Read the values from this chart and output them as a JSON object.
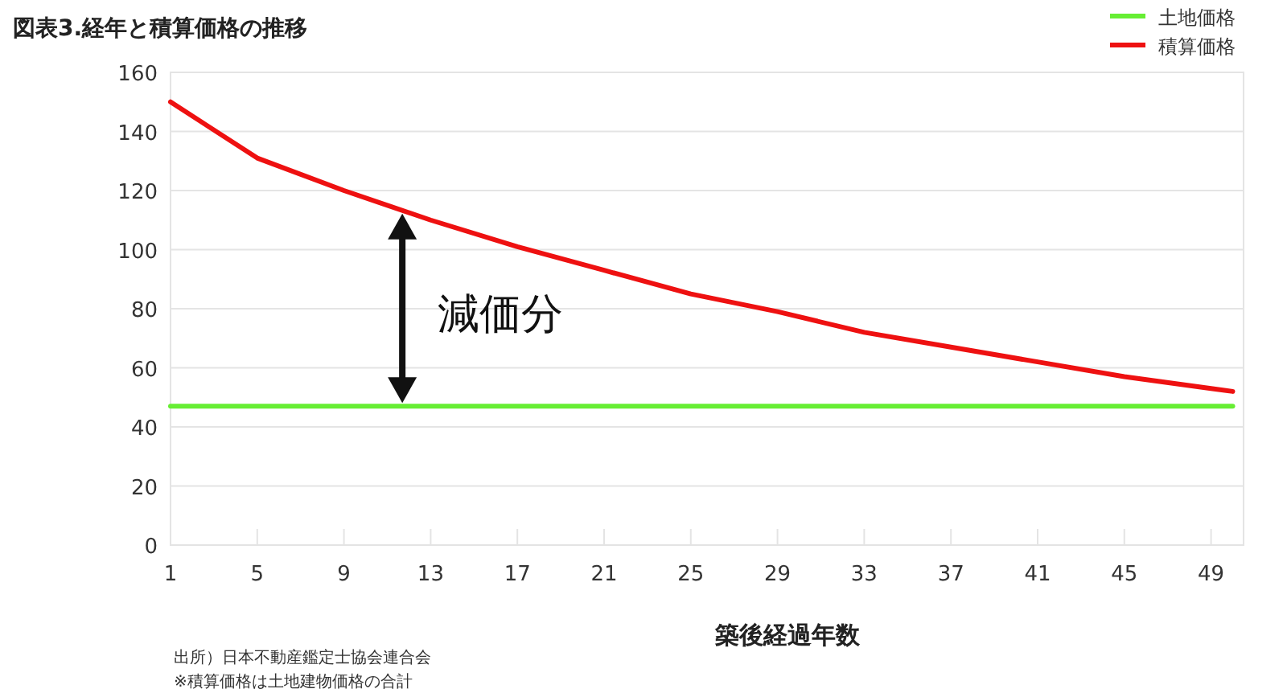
{
  "chart_data": {
    "type": "line",
    "title": "図表3.経年と積算価格の推移",
    "xlabel": "築後経過年数",
    "x": [
      1,
      50
    ],
    "series": [
      {
        "name": "土地価格",
        "color": "#66ee33",
        "values": [
          47,
          47
        ]
      },
      {
        "name": "積算価格",
        "color": "#ee1111",
        "x": [
          1,
          5,
          9,
          13,
          17,
          21,
          25,
          29,
          33,
          37,
          41,
          45,
          49,
          50
        ],
        "values": [
          150,
          131,
          120,
          110,
          101,
          93,
          85,
          79,
          72,
          67,
          62,
          57,
          53,
          52
        ]
      }
    ],
    "xlim": [
      1,
      50.5
    ],
    "xticks": [
      1,
      5,
      9,
      13,
      17,
      21,
      25,
      29,
      33,
      37,
      41,
      45,
      49
    ],
    "ylim": [
      0,
      160
    ],
    "yticks": [
      0,
      20,
      40,
      60,
      80,
      100,
      120,
      140,
      160
    ],
    "grid": "y",
    "legend": "top right",
    "marker": "none",
    "line_style": "solid",
    "annotations": [
      "減価分",
      "出所）日本不動産鑑定士協会連合会",
      "※積算価格は土地建物価格の合計"
    ]
  }
}
